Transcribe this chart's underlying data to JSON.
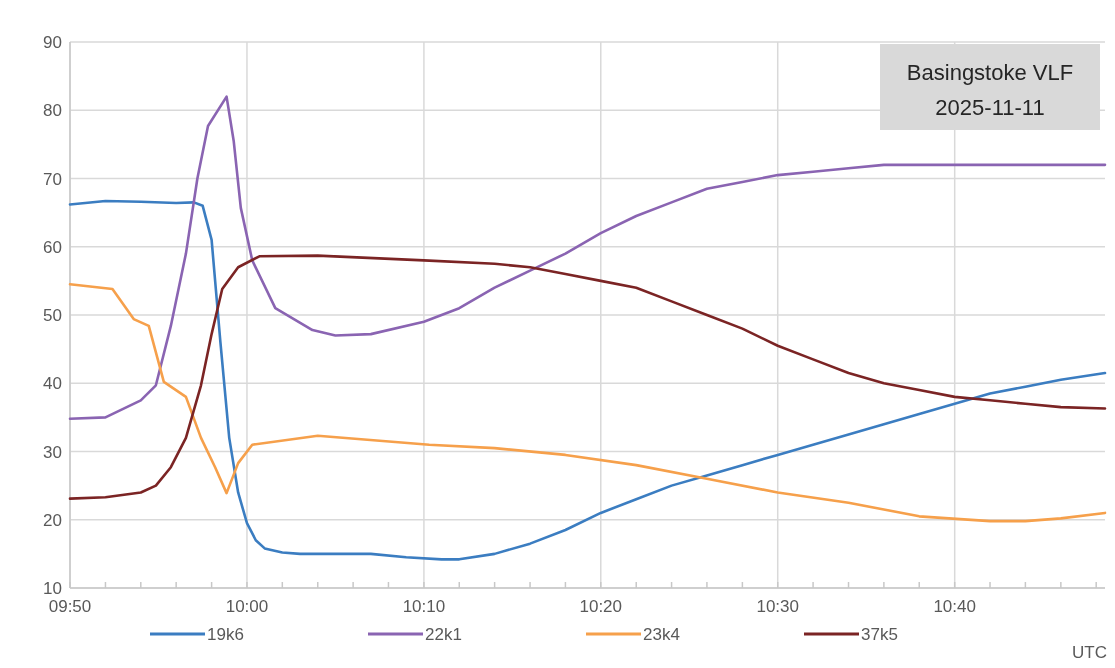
{
  "chart_data": {
    "type": "line",
    "title": "Basingstoke VLF",
    "subtitle": "2025-11-11",
    "xlabel": "UTC",
    "xlim": [
      9.8333,
      10.8083
    ],
    "ylim": [
      10,
      90
    ],
    "yticks": [
      10,
      20,
      30,
      40,
      50,
      60,
      70,
      80,
      90
    ],
    "xticks": [
      {
        "value": 9.8333,
        "label": "09:50"
      },
      {
        "value": 9.8667,
        "label": null
      },
      {
        "value": 9.9,
        "label": null
      },
      {
        "value": 9.9333,
        "label": null
      },
      {
        "value": 9.9667,
        "label": null
      },
      {
        "value": 10.0,
        "label": "10:00"
      },
      {
        "value": 10.0333,
        "label": null
      },
      {
        "value": 10.0667,
        "label": null
      },
      {
        "value": 10.1,
        "label": null
      },
      {
        "value": 10.1333,
        "label": null
      },
      {
        "value": 10.1667,
        "label": "10:10"
      },
      {
        "value": 10.2,
        "label": null
      },
      {
        "value": 10.2333,
        "label": null
      },
      {
        "value": 10.2667,
        "label": null
      },
      {
        "value": 10.3,
        "label": null
      },
      {
        "value": 10.3333,
        "label": "10:20"
      },
      {
        "value": 10.3667,
        "label": null
      },
      {
        "value": 10.4,
        "label": null
      },
      {
        "value": 10.4333,
        "label": null
      },
      {
        "value": 10.4667,
        "label": null
      },
      {
        "value": 10.5,
        "label": "10:30"
      },
      {
        "value": 10.5333,
        "label": null
      },
      {
        "value": 10.5667,
        "label": null
      },
      {
        "value": 10.6,
        "label": null
      },
      {
        "value": 10.6333,
        "label": null
      },
      {
        "value": 10.6667,
        "label": "10:40"
      },
      {
        "value": 10.7,
        "label": null
      },
      {
        "value": 10.7333,
        "label": null
      },
      {
        "value": 10.7667,
        "label": null
      },
      {
        "value": 10.8,
        "label": null
      }
    ],
    "grid": true,
    "legend": "bottom",
    "line_style": "solid",
    "series": [
      {
        "name": "19k6",
        "color": "#3b7dc1",
        "x": [
          9.8333,
          9.8667,
          9.9,
          9.9333,
          9.95,
          9.9583,
          9.9667,
          9.975,
          9.9833,
          9.9917,
          10.0,
          10.0083,
          10.0167,
          10.0333,
          10.05,
          10.0833,
          10.1167,
          10.15,
          10.1833,
          10.2,
          10.2333,
          10.2667,
          10.3,
          10.3333,
          10.3667,
          10.4,
          10.4333,
          10.4667,
          10.5,
          10.5333,
          10.5667,
          10.6,
          10.6333,
          10.6667,
          10.7,
          10.7333,
          10.7667,
          10.8083
        ],
        "values": [
          66.2,
          66.7,
          66.6,
          66.4,
          66.5,
          66,
          61,
          46,
          32,
          24,
          19.5,
          17,
          15.8,
          15.2,
          15,
          15,
          15,
          14.5,
          14.2,
          14.2,
          15,
          16.5,
          18.5,
          21,
          23,
          25,
          26.5,
          28,
          29.5,
          31,
          32.5,
          34,
          35.5,
          37,
          38.5,
          39.5,
          40.5,
          41.5
        ]
      },
      {
        "name": "22k1",
        "color": "#8a64b2",
        "x": [
          9.8333,
          9.8667,
          9.9,
          9.9142,
          9.9283,
          9.9425,
          9.9533,
          9.9633,
          9.9808,
          9.9875,
          9.9942,
          10.005,
          10.0267,
          10.0617,
          10.0833,
          10.1167,
          10.1667,
          10.2,
          10.2333,
          10.2667,
          10.3,
          10.3333,
          10.3667,
          10.4,
          10.4333,
          10.4667,
          10.5,
          10.5333,
          10.5667,
          10.6,
          10.6333,
          10.6667,
          10.7,
          10.7333,
          10.7667,
          10.8083
        ],
        "values": [
          34.8,
          35,
          37.5,
          39.7,
          48.4,
          59,
          70,
          77.7,
          82,
          75.5,
          65.7,
          58,
          51,
          47.8,
          47,
          47.2,
          49,
          51,
          54,
          56.5,
          59,
          62,
          64.5,
          66.5,
          68.5,
          69.5,
          70.5,
          71,
          71.5,
          72,
          72,
          72,
          72,
          72,
          72,
          72
        ]
      },
      {
        "name": "23k4",
        "color": "#f6a04b",
        "x": [
          9.8333,
          9.8733,
          9.8933,
          9.9075,
          9.9217,
          9.9425,
          9.9567,
          9.97,
          9.9808,
          9.9917,
          10.005,
          10.0667,
          10.1717,
          10.2333,
          10.3,
          10.3667,
          10.4333,
          10.5,
          10.5667,
          10.6333,
          10.7,
          10.7333,
          10.7667,
          10.8083
        ],
        "values": [
          54.5,
          53.8,
          49.4,
          48.4,
          40.2,
          38,
          32,
          27.7,
          23.9,
          28.3,
          31,
          32.3,
          31,
          30.5,
          29.5,
          28,
          26,
          24,
          22.5,
          20.5,
          19.8,
          19.8,
          20.2,
          21
        ]
      },
      {
        "name": "37k5",
        "color": "#7b2424",
        "x": [
          9.8333,
          9.8667,
          9.9,
          9.9142,
          9.9283,
          9.9425,
          9.9567,
          9.9667,
          9.9767,
          9.9917,
          10.0117,
          10.0667,
          10.1667,
          10.2333,
          10.2667,
          10.3,
          10.3333,
          10.3667,
          10.4,
          10.4333,
          10.4667,
          10.5,
          10.5333,
          10.5667,
          10.6,
          10.6333,
          10.6667,
          10.7,
          10.7333,
          10.7667,
          10.8083
        ],
        "values": [
          23.1,
          23.3,
          24,
          25,
          27.7,
          32,
          39.7,
          47.2,
          53.8,
          57,
          58.6,
          58.7,
          58,
          57.5,
          57,
          56,
          55,
          54,
          52,
          50,
          48,
          45.5,
          43.5,
          41.5,
          40,
          39,
          38,
          37.5,
          37,
          36.5,
          36.3
        ]
      }
    ]
  }
}
